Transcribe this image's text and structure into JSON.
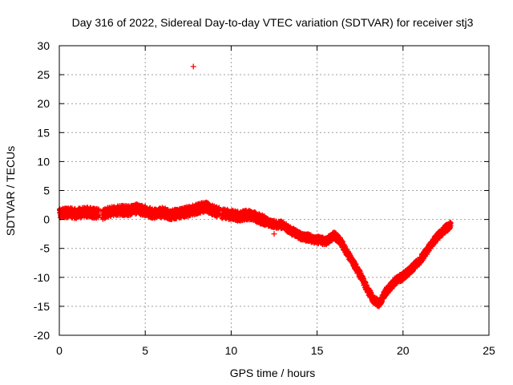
{
  "chart_data": {
    "type": "scatter",
    "title": "Day 316 of 2022, Sidereal Day-to-day VTEC variation (SDTVAR) for receiver stj3",
    "xlabel": "GPS time / hours",
    "ylabel": "SDTVAR / TECUs",
    "xlim": [
      0,
      25
    ],
    "ylim": [
      -20,
      30
    ],
    "x_ticks": [
      "0",
      "5",
      "10",
      "15",
      "20",
      "25"
    ],
    "y_ticks": [
      "30",
      "25",
      "20",
      "15",
      "10",
      "5",
      "0",
      "-5",
      "-10",
      "-15",
      "-20"
    ],
    "grid": true,
    "marker": "+",
    "series_color": "#ff0000",
    "series": [
      {
        "name": "SDTVAR",
        "trend": [
          [
            0.0,
            1.0
          ],
          [
            0.5,
            1.2
          ],
          [
            1.0,
            1.0
          ],
          [
            1.5,
            1.3
          ],
          [
            2.0,
            1.1
          ],
          [
            2.5,
            0.8
          ],
          [
            3.0,
            1.4
          ],
          [
            3.5,
            1.6
          ],
          [
            4.0,
            1.5
          ],
          [
            4.5,
            1.8
          ],
          [
            5.0,
            1.5
          ],
          [
            5.5,
            1.0
          ],
          [
            6.0,
            1.2
          ],
          [
            6.5,
            0.8
          ],
          [
            7.0,
            1.0
          ],
          [
            7.5,
            1.4
          ],
          [
            8.0,
            1.8
          ],
          [
            8.5,
            2.2
          ],
          [
            9.0,
            1.5
          ],
          [
            9.5,
            1.0
          ],
          [
            10.0,
            0.8
          ],
          [
            10.5,
            0.5
          ],
          [
            11.0,
            0.8
          ],
          [
            11.5,
            0.3
          ],
          [
            12.0,
            -0.3
          ],
          [
            12.5,
            -0.8
          ],
          [
            13.0,
            -1.0
          ],
          [
            13.5,
            -2.0
          ],
          [
            14.0,
            -2.8
          ],
          [
            14.5,
            -3.2
          ],
          [
            15.0,
            -3.5
          ],
          [
            15.5,
            -3.8
          ],
          [
            16.0,
            -2.8
          ],
          [
            16.3,
            -3.5
          ],
          [
            16.6,
            -5.0
          ],
          [
            17.0,
            -7.0
          ],
          [
            17.5,
            -9.5
          ],
          [
            18.0,
            -12.5
          ],
          [
            18.3,
            -14.0
          ],
          [
            18.6,
            -14.5
          ],
          [
            19.0,
            -12.5
          ],
          [
            19.5,
            -10.8
          ],
          [
            20.0,
            -9.8
          ],
          [
            20.5,
            -8.5
          ],
          [
            21.0,
            -7.0
          ],
          [
            21.5,
            -5.0
          ],
          [
            22.0,
            -3.0
          ],
          [
            22.5,
            -1.5
          ],
          [
            22.8,
            -1.0
          ]
        ],
        "outliers": [
          [
            7.8,
            26.4
          ],
          [
            12.5,
            -2.5
          ]
        ]
      }
    ]
  }
}
